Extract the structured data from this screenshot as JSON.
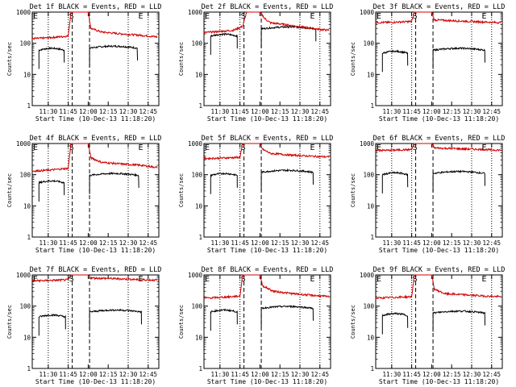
{
  "figure": {
    "panel_title_template": "Det {det}f BLACK = Events, RED = LLD",
    "ylabel": "Counts/sec",
    "xlabel": "Start Time (10-Dec-13 11:18:20)",
    "colors": {
      "events": "#000000",
      "lld": "#d00000",
      "frame": "#000000"
    }
  },
  "chart_data": [
    {
      "det": "1",
      "title": "Det 1f BLACK = Events, RED = LLD",
      "type": "line",
      "y_scale": "log",
      "ylim": [
        1,
        1000
      ],
      "y_ticks": [
        "1",
        "10",
        "100",
        "1000"
      ],
      "x_ticks": [
        "11:30",
        "11:45",
        "12:00",
        "12:15",
        "12:30",
        "12:45"
      ],
      "xlabel": "Start Time (10-Dec-13 11:18:20)",
      "ylabel": "Counts/sec",
      "markers": [
        "E",
        "S",
        "E"
      ],
      "series": [
        {
          "name": "Events",
          "color": "#000000",
          "segments": [
            {
              "start": "11:23",
              "end": "11:42",
              "level": 60,
              "tail": 0.04
            },
            {
              "start": "12:01",
              "end": "12:37",
              "level": 70,
              "tail": 0.04
            }
          ]
        },
        {
          "name": "LLD",
          "color": "#d00000",
          "x": [
            "11:18",
            "11:30",
            "11:45",
            "11:47",
            "11:49",
            "12:00",
            "12:02",
            "12:10",
            "12:25",
            "12:40",
            "12:52"
          ],
          "values": [
            140,
            150,
            170,
            1000,
            1000,
            1000,
            300,
            230,
            200,
            180,
            160
          ]
        }
      ]
    },
    {
      "det": "2",
      "title": "Det 2f BLACK = Events, RED = LLD",
      "type": "line",
      "y_scale": "log",
      "ylim": [
        1,
        1000
      ],
      "y_ticks": [
        "1",
        "10",
        "100",
        "1000"
      ],
      "x_ticks": [
        "11:30",
        "11:45",
        "12:00",
        "12:15",
        "12:30",
        "12:45"
      ],
      "xlabel": "Start Time (10-Dec-13 11:18:20)",
      "ylabel": "Counts/sec",
      "markers": [
        "E",
        "S",
        "E"
      ],
      "series": [
        {
          "name": "Events",
          "color": "#000000",
          "segments": [
            {
              "start": "11:23",
              "end": "11:43",
              "level": 170,
              "tail": 0.06
            },
            {
              "start": "12:01",
              "end": "12:42",
              "level": 290,
              "tail": 0.03
            }
          ]
        },
        {
          "name": "LLD",
          "color": "#d00000",
          "x": [
            "11:18",
            "11:30",
            "11:40",
            "11:47",
            "11:50",
            "11:55",
            "12:00",
            "12:04",
            "12:08",
            "12:15",
            "12:30",
            "12:45",
            "12:52"
          ],
          "values": [
            220,
            240,
            260,
            350,
            1000,
            1000,
            1000,
            600,
            450,
            420,
            340,
            280,
            260
          ]
        }
      ]
    },
    {
      "det": "3",
      "title": "Det 3f BLACK = Events, RED = LLD",
      "type": "line",
      "y_scale": "log",
      "ylim": [
        1,
        1000
      ],
      "y_ticks": [
        "1",
        "10",
        "100",
        "1000"
      ],
      "x_ticks": [
        "11:30",
        "11:45",
        "12:00",
        "12:15",
        "12:30",
        "12:45"
      ],
      "xlabel": "Start Time (10-Dec-13 11:18:20)",
      "ylabel": "Counts/sec",
      "markers": [
        "E",
        "S",
        "E"
      ],
      "series": [
        {
          "name": "Events",
          "color": "#000000",
          "segments": [
            {
              "start": "11:23",
              "end": "11:42",
              "level": 48,
              "tail": 0.05
            },
            {
              "start": "12:01",
              "end": "12:40",
              "level": 60,
              "tail": 0.04
            }
          ]
        },
        {
          "name": "LLD",
          "color": "#d00000",
          "x": [
            "11:18",
            "11:30",
            "11:45",
            "11:47",
            "11:50",
            "12:00",
            "12:02",
            "12:20",
            "12:40",
            "12:52"
          ],
          "values": [
            460,
            470,
            500,
            1000,
            1000,
            1000,
            560,
            520,
            480,
            460
          ]
        }
      ]
    },
    {
      "det": "4",
      "title": "Det 4f BLACK = Events, RED = LLD",
      "type": "line",
      "y_scale": "log",
      "ylim": [
        1,
        1000
      ],
      "y_ticks": [
        "1",
        "10",
        "100",
        "1000"
      ],
      "x_ticks": [
        "11:30",
        "11:45",
        "12:00",
        "12:15",
        "12:30",
        "12:45"
      ],
      "xlabel": "Start Time (10-Dec-13 11:18:20)",
      "ylabel": "Counts/sec",
      "markers": [
        "E",
        "S",
        "E"
      ],
      "series": [
        {
          "name": "Events",
          "color": "#000000",
          "segments": [
            {
              "start": "11:23",
              "end": "11:42",
              "level": 55,
              "tail": 0.05
            },
            {
              "start": "12:01",
              "end": "12:38",
              "level": 95,
              "tail": 0.04
            }
          ]
        },
        {
          "name": "LLD",
          "color": "#d00000",
          "x": [
            "11:18",
            "11:30",
            "11:45",
            "11:47",
            "11:50",
            "12:00",
            "12:02",
            "12:10",
            "12:25",
            "12:40",
            "12:52"
          ],
          "values": [
            130,
            140,
            160,
            1000,
            1000,
            1000,
            350,
            250,
            220,
            200,
            170
          ]
        }
      ]
    },
    {
      "det": "5",
      "title": "Det 5f BLACK = Events, RED = LLD",
      "type": "line",
      "y_scale": "log",
      "ylim": [
        1,
        1000
      ],
      "y_ticks": [
        "1",
        "10",
        "100",
        "1000"
      ],
      "x_ticks": [
        "11:30",
        "11:45",
        "12:00",
        "12:15",
        "12:30",
        "12:45"
      ],
      "xlabel": "Start Time (10-Dec-13 11:18:20)",
      "ylabel": "Counts/sec",
      "markers": [
        "E",
        "S",
        "E"
      ],
      "series": [
        {
          "name": "Events",
          "color": "#000000",
          "segments": [
            {
              "start": "11:23",
              "end": "11:43",
              "level": 95,
              "tail": 0.04
            },
            {
              "start": "12:01",
              "end": "12:40",
              "level": 120,
              "tail": 0.04
            }
          ]
        },
        {
          "name": "LLD",
          "color": "#d00000",
          "x": [
            "11:18",
            "11:30",
            "11:45",
            "11:47",
            "11:50",
            "12:00",
            "12:02",
            "12:08",
            "12:25",
            "12:40",
            "12:52"
          ],
          "values": [
            330,
            340,
            360,
            1000,
            1000,
            1000,
            650,
            480,
            420,
            390,
            370
          ]
        }
      ]
    },
    {
      "det": "6",
      "title": "Det 6f BLACK = Events, RED = LLD",
      "type": "line",
      "y_scale": "log",
      "ylim": [
        1,
        1000
      ],
      "y_ticks": [
        "1",
        "10",
        "100",
        "1000"
      ],
      "x_ticks": [
        "11:30",
        "11:45",
        "12:00",
        "12:15",
        "12:30",
        "12:45"
      ],
      "xlabel": "Start Time (10-Dec-13 11:18:20)",
      "ylabel": "Counts/sec",
      "markers": [
        "E",
        "S",
        "E"
      ],
      "series": [
        {
          "name": "Events",
          "color": "#000000",
          "segments": [
            {
              "start": "11:23",
              "end": "11:42",
              "level": 100,
              "tail": 0.04
            },
            {
              "start": "12:01",
              "end": "12:40",
              "level": 110,
              "tail": 0.04
            }
          ]
        },
        {
          "name": "LLD",
          "color": "#d00000",
          "x": [
            "11:18",
            "11:30",
            "11:45",
            "11:47",
            "11:50",
            "12:00",
            "12:02",
            "12:20",
            "12:40",
            "12:52"
          ],
          "values": [
            600,
            610,
            640,
            1000,
            1000,
            1000,
            720,
            680,
            640,
            610
          ]
        }
      ]
    },
    {
      "det": "7",
      "title": "Det 7f BLACK = Events, RED = LLD",
      "type": "line",
      "y_scale": "log",
      "ylim": [
        1,
        1000
      ],
      "y_ticks": [
        "1",
        "10",
        "100",
        "1000"
      ],
      "x_ticks": [
        "11:30",
        "11:45",
        "12:00",
        "12:15",
        "12:30",
        "12:45"
      ],
      "xlabel": "Start Time (10-Dec-13 11:18:20)",
      "ylabel": "Counts/sec",
      "markers": [
        "E",
        "S",
        "E"
      ],
      "series": [
        {
          "name": "Events",
          "color": "#000000",
          "segments": [
            {
              "start": "11:23",
              "end": "11:43",
              "level": 45,
              "tail": 0.04
            },
            {
              "start": "12:01",
              "end": "12:40",
              "level": 65,
              "tail": 0.04
            }
          ]
        },
        {
          "name": "LLD",
          "color": "#d00000",
          "x": [
            "11:18",
            "11:30",
            "11:45",
            "11:47",
            "11:50",
            "12:00",
            "12:02",
            "12:20",
            "12:40",
            "12:52"
          ],
          "values": [
            650,
            660,
            700,
            1000,
            1000,
            1000,
            800,
            760,
            700,
            680
          ]
        }
      ]
    },
    {
      "det": "8",
      "title": "Det 8f BLACK = Events, RED = LLD",
      "type": "line",
      "y_scale": "log",
      "ylim": [
        1,
        1000
      ],
      "y_ticks": [
        "1",
        "10",
        "100",
        "1000"
      ],
      "x_ticks": [
        "11:30",
        "11:45",
        "12:00",
        "12:15",
        "12:30",
        "12:45"
      ],
      "xlabel": "Start Time (10-Dec-13 11:18:20)",
      "ylabel": "Counts/sec",
      "markers": [
        "E",
        "S",
        "E"
      ],
      "series": [
        {
          "name": "Events",
          "color": "#000000",
          "segments": [
            {
              "start": "11:23",
              "end": "11:43",
              "level": 65,
              "tail": 0.04
            },
            {
              "start": "12:01",
              "end": "12:40",
              "level": 85,
              "tail": 0.04
            }
          ]
        },
        {
          "name": "LLD",
          "color": "#d00000",
          "x": [
            "11:18",
            "11:30",
            "11:45",
            "11:47",
            "11:50",
            "12:00",
            "12:02",
            "12:10",
            "12:25",
            "12:40",
            "12:52"
          ],
          "values": [
            180,
            190,
            210,
            1000,
            1000,
            1000,
            450,
            300,
            250,
            220,
            200
          ]
        }
      ]
    },
    {
      "det": "9",
      "title": "Det 9f BLACK = Events, RED = LLD",
      "type": "line",
      "y_scale": "log",
      "ylim": [
        1,
        1000
      ],
      "y_ticks": [
        "1",
        "10",
        "100",
        "1000"
      ],
      "x_ticks": [
        "11:30",
        "11:45",
        "12:00",
        "12:15",
        "12:30",
        "12:45"
      ],
      "xlabel": "Start Time (10-Dec-13 11:18:20)",
      "ylabel": "Counts/sec",
      "markers": [
        "E",
        "S",
        "E"
      ],
      "series": [
        {
          "name": "Events",
          "color": "#000000",
          "segments": [
            {
              "start": "11:23",
              "end": "11:42",
              "level": 50,
              "tail": 0.04
            },
            {
              "start": "12:01",
              "end": "12:40",
              "level": 60,
              "tail": 0.04
            }
          ]
        },
        {
          "name": "LLD",
          "color": "#d00000",
          "x": [
            "11:18",
            "11:30",
            "11:45",
            "11:47",
            "11:50",
            "12:00",
            "12:02",
            "12:10",
            "12:25",
            "12:40",
            "12:52"
          ],
          "values": [
            180,
            190,
            200,
            1000,
            1000,
            1000,
            350,
            250,
            230,
            210,
            200
          ]
        }
      ]
    }
  ]
}
